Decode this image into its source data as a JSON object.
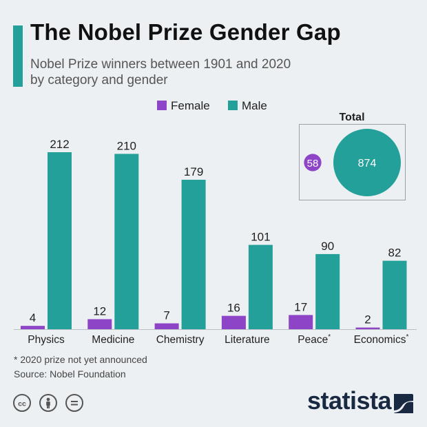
{
  "header": {
    "title": "The Nobel Prize Gender Gap",
    "subtitle_line1": "Nobel Prize winners between 1901 and 2020",
    "subtitle_line2": "by category and gender"
  },
  "colors": {
    "female": "#8e44c7",
    "male": "#23a099",
    "accent": "#23a099",
    "text": "#1f1f1f",
    "axis": "#b8c0c6"
  },
  "chart_data": {
    "type": "bar",
    "categories": [
      "Physics",
      "Medicine",
      "Chemistry",
      "Literature",
      "Peace",
      "Economics"
    ],
    "category_marks": [
      "",
      "",
      "",
      "",
      "*",
      "*"
    ],
    "series": [
      {
        "name": "Female",
        "values": [
          4,
          12,
          7,
          16,
          17,
          2
        ]
      },
      {
        "name": "Male",
        "values": [
          212,
          210,
          179,
          101,
          90,
          82
        ]
      }
    ],
    "ylim": [
      0,
      220
    ],
    "legend": "top-center",
    "grid": false,
    "total": {
      "label": "Total",
      "female": 58,
      "male": 874
    }
  },
  "footer": {
    "note": "* 2020 prize not yet announced",
    "source": "Source: Nobel Foundation",
    "cc_icons": [
      "cc-icon",
      "attribution-icon",
      "no-derivatives-icon"
    ],
    "brand": "statista"
  }
}
